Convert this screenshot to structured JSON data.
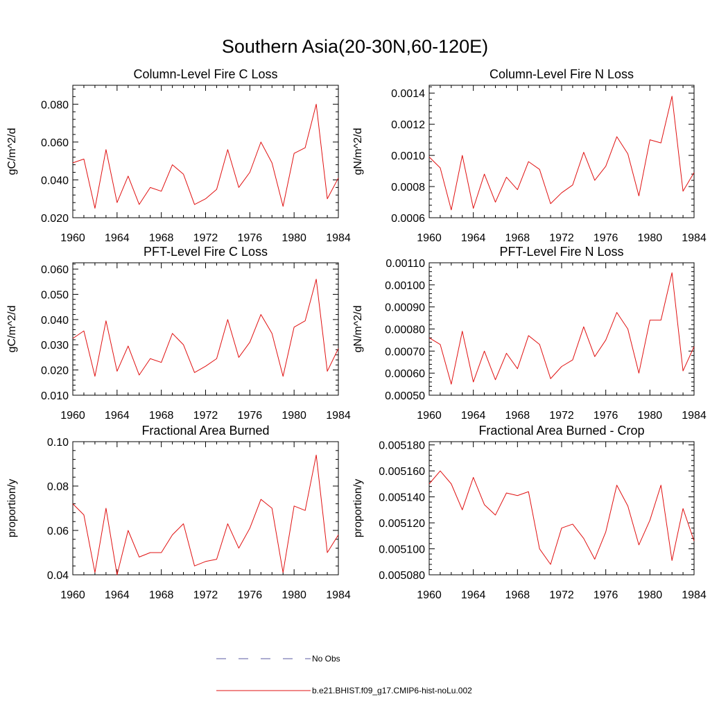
{
  "figure_title": "Southern Asia(20-30N,60-120E)",
  "legend": [
    {
      "label": "No Obs",
      "color": "#5a5aa0",
      "dashed": true
    },
    {
      "label": "b.e21.BHIST.f09_g17.CMIP6-hist-noLu.002",
      "color": "#e01010",
      "dashed": false
    }
  ],
  "colors": {
    "model": "#e01010",
    "obs": "#5a5aa0"
  },
  "chart_data": [
    {
      "type": "line",
      "title": "Column-Level Fire C Loss",
      "xlabel": "",
      "ylabel": "gC/m^2/d",
      "xlim": [
        1960,
        1984
      ],
      "ylim": [
        0.02,
        0.09
      ],
      "xticks": [
        1960,
        1964,
        1968,
        1972,
        1976,
        1980,
        1984
      ],
      "yticks": [
        0.02,
        0.04,
        0.06,
        0.08
      ],
      "ytick_labels": [
        "0.020",
        "0.040",
        "0.060",
        "0.080"
      ],
      "x": [
        1960,
        1961,
        1962,
        1963,
        1964,
        1965,
        1966,
        1967,
        1968,
        1969,
        1970,
        1971,
        1972,
        1973,
        1974,
        1975,
        1976,
        1977,
        1978,
        1979,
        1980,
        1981,
        1982,
        1983,
        1984
      ],
      "series": [
        {
          "name": "b.e21.BHIST.f09_g17.CMIP6-hist-noLu.002",
          "values": [
            0.049,
            0.051,
            0.025,
            0.056,
            0.028,
            0.042,
            0.027,
            0.036,
            0.034,
            0.048,
            0.043,
            0.027,
            0.03,
            0.035,
            0.056,
            0.036,
            0.044,
            0.06,
            0.049,
            0.026,
            0.054,
            0.057,
            0.08,
            0.03,
            0.041
          ]
        }
      ]
    },
    {
      "type": "line",
      "title": "Column-Level Fire N Loss",
      "xlabel": "",
      "ylabel": "gN/m^2/d",
      "xlim": [
        1960,
        1984
      ],
      "ylim": [
        0.0006,
        0.00145
      ],
      "xticks": [
        1960,
        1964,
        1968,
        1972,
        1976,
        1980,
        1984
      ],
      "yticks": [
        0.0006,
        0.0008,
        0.001,
        0.0012,
        0.0014
      ],
      "ytick_labels": [
        "0.0006",
        "0.0008",
        "0.0010",
        "0.0012",
        "0.0014"
      ],
      "x": [
        1960,
        1961,
        1962,
        1963,
        1964,
        1965,
        1966,
        1967,
        1968,
        1969,
        1970,
        1971,
        1972,
        1973,
        1974,
        1975,
        1976,
        1977,
        1978,
        1979,
        1980,
        1981,
        1982,
        1983,
        1984
      ],
      "series": [
        {
          "name": "b.e21.BHIST.f09_g17.CMIP6-hist-noLu.002",
          "values": [
            0.00099,
            0.00092,
            0.00065,
            0.001,
            0.00066,
            0.00088,
            0.0007,
            0.00086,
            0.00078,
            0.00096,
            0.00091,
            0.00069,
            0.00076,
            0.00081,
            0.00102,
            0.00084,
            0.00093,
            0.00112,
            0.00101,
            0.00074,
            0.0011,
            0.00108,
            0.00138,
            0.00077,
            0.00089
          ]
        }
      ]
    },
    {
      "type": "line",
      "title": "PFT-Level Fire C Loss",
      "xlabel": "",
      "ylabel": "gC/m^2/d",
      "xlim": [
        1960,
        1984
      ],
      "ylim": [
        0.01,
        0.0625
      ],
      "xticks": [
        1960,
        1964,
        1968,
        1972,
        1976,
        1980,
        1984
      ],
      "yticks": [
        0.01,
        0.02,
        0.03,
        0.04,
        0.05,
        0.06
      ],
      "ytick_labels": [
        "0.010",
        "0.020",
        "0.030",
        "0.040",
        "0.050",
        "0.060"
      ],
      "x": [
        1960,
        1961,
        1962,
        1963,
        1964,
        1965,
        1966,
        1967,
        1968,
        1969,
        1970,
        1971,
        1972,
        1973,
        1974,
        1975,
        1976,
        1977,
        1978,
        1979,
        1980,
        1981,
        1982,
        1983,
        1984
      ],
      "series": [
        {
          "name": "b.e21.BHIST.f09_g17.CMIP6-hist-noLu.002",
          "values": [
            0.0325,
            0.0355,
            0.0175,
            0.0395,
            0.0195,
            0.0295,
            0.018,
            0.0245,
            0.023,
            0.0345,
            0.03,
            0.019,
            0.0215,
            0.0245,
            0.04,
            0.025,
            0.031,
            0.042,
            0.0345,
            0.0175,
            0.037,
            0.0395,
            0.056,
            0.0195,
            0.0285
          ]
        }
      ]
    },
    {
      "type": "line",
      "title": "PFT-Level Fire N Loss",
      "xlabel": "",
      "ylabel": "gN/m^2/d",
      "xlim": [
        1960,
        1984
      ],
      "ylim": [
        0.0005,
        0.0011
      ],
      "xticks": [
        1960,
        1964,
        1968,
        1972,
        1976,
        1980,
        1984
      ],
      "yticks": [
        0.0005,
        0.0006,
        0.0007,
        0.0008,
        0.0009,
        0.001,
        0.0011
      ],
      "ytick_labels": [
        "0.00050",
        "0.00060",
        "0.00070",
        "0.00080",
        "0.00090",
        "0.00100",
        "0.00110"
      ],
      "x": [
        1960,
        1961,
        1962,
        1963,
        1964,
        1965,
        1966,
        1967,
        1968,
        1969,
        1970,
        1971,
        1972,
        1973,
        1974,
        1975,
        1976,
        1977,
        1978,
        1979,
        1980,
        1981,
        1982,
        1983,
        1984
      ],
      "series": [
        {
          "name": "b.e21.BHIST.f09_g17.CMIP6-hist-noLu.002",
          "values": [
            0.00076,
            0.00073,
            0.00055,
            0.00079,
            0.00056,
            0.0007,
            0.00057,
            0.00069,
            0.00062,
            0.00077,
            0.00073,
            0.000575,
            0.00063,
            0.00066,
            0.00081,
            0.000675,
            0.00075,
            0.000875,
            0.0008,
            0.0006,
            0.00084,
            0.00084,
            0.001055,
            0.00061,
            0.00072
          ]
        }
      ]
    },
    {
      "type": "line",
      "title": "Fractional Area Burned",
      "xlabel": "",
      "ylabel": "proportion/y",
      "xlim": [
        1960,
        1984
      ],
      "ylim": [
        0.04,
        0.1
      ],
      "xticks": [
        1960,
        1964,
        1968,
        1972,
        1976,
        1980,
        1984
      ],
      "yticks": [
        0.04,
        0.06,
        0.08,
        0.1
      ],
      "ytick_labels": [
        "0.04",
        "0.06",
        "0.08",
        "0.10"
      ],
      "x": [
        1960,
        1961,
        1962,
        1963,
        1964,
        1965,
        1966,
        1967,
        1968,
        1969,
        1970,
        1971,
        1972,
        1973,
        1974,
        1975,
        1976,
        1977,
        1978,
        1979,
        1980,
        1981,
        1982,
        1983,
        1984
      ],
      "series": [
        {
          "name": "b.e21.BHIST.f09_g17.CMIP6-hist-noLu.002",
          "values": [
            0.072,
            0.067,
            0.041,
            0.07,
            0.04,
            0.06,
            0.048,
            0.05,
            0.05,
            0.058,
            0.063,
            0.044,
            0.046,
            0.047,
            0.063,
            0.052,
            0.061,
            0.074,
            0.07,
            0.041,
            0.071,
            0.069,
            0.094,
            0.05,
            0.058
          ]
        }
      ]
    },
    {
      "type": "line",
      "title": "Fractional Area Burned - Crop",
      "xlabel": "",
      "ylabel": "proportion/y",
      "xlim": [
        1960,
        1984
      ],
      "ylim": [
        0.00508,
        0.0051825
      ],
      "xticks": [
        1960,
        1964,
        1968,
        1972,
        1976,
        1980,
        1984
      ],
      "yticks": [
        0.00508,
        0.0051,
        0.00512,
        0.00514,
        0.00516,
        0.00518
      ],
      "ytick_labels": [
        "0.005080",
        "0.005100",
        "0.005120",
        "0.005140",
        "0.005160",
        "0.005180"
      ],
      "x": [
        1960,
        1961,
        1962,
        1963,
        1964,
        1965,
        1966,
        1967,
        1968,
        1969,
        1970,
        1971,
        1972,
        1973,
        1974,
        1975,
        1976,
        1977,
        1978,
        1979,
        1980,
        1981,
        1982,
        1983,
        1984
      ],
      "series": [
        {
          "name": "b.e21.BHIST.f09_g17.CMIP6-hist-noLu.002",
          "values": [
            0.00515,
            0.00516,
            0.00515,
            0.00513,
            0.005155,
            0.005134,
            0.005126,
            0.005143,
            0.005141,
            0.005144,
            0.0051,
            0.005088,
            0.005116,
            0.005119,
            0.005108,
            0.005092,
            0.005113,
            0.005149,
            0.005133,
            0.005103,
            0.005122,
            0.005149,
            0.005091,
            0.005131,
            0.005106
          ]
        }
      ]
    }
  ]
}
